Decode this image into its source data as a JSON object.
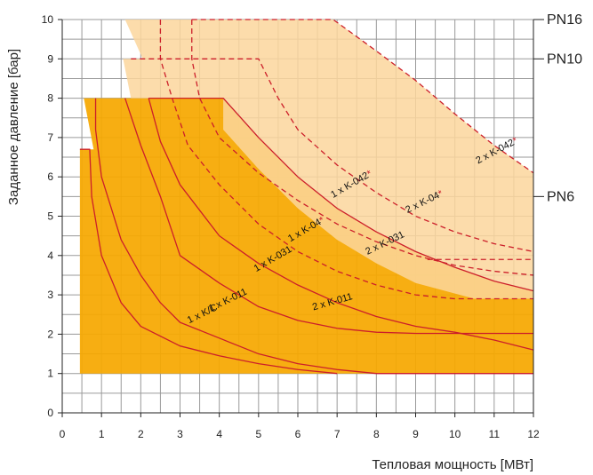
{
  "chart_data": {
    "type": "area",
    "title": "",
    "xlabel": "Тепловая мощность [МВт]",
    "ylabel": "Заданное давление [бар]",
    "xlim": [
      0,
      12
    ],
    "ylim": [
      0,
      10
    ],
    "x_ticks": [
      "0",
      "1",
      "2",
      "3",
      "4",
      "5",
      "6",
      "7",
      "8",
      "9",
      "10",
      "11",
      "12"
    ],
    "y_ticks": [
      "0",
      "1",
      "2",
      "3",
      "4",
      "5",
      "6",
      "7",
      "8",
      "9",
      "10"
    ],
    "grid": true,
    "colors": {
      "orange": "#f6a800",
      "light_orange": "#fbd69c",
      "curve": "#cc1f2a",
      "grid": "#9a9a9a"
    },
    "pressure_classes": [
      {
        "label": "PN16",
        "y": 10
      },
      {
        "label": "PN10",
        "y": 9
      },
      {
        "label": "PN6",
        "y": 5.5
      }
    ],
    "regions": [
      {
        "name": "orange",
        "points": [
          [
            0.45,
            1
          ],
          [
            0.45,
            6.7
          ],
          [
            0.8,
            6.7
          ],
          [
            0.55,
            8
          ],
          [
            4.1,
            8
          ],
          [
            5,
            7
          ],
          [
            6,
            6
          ],
          [
            7,
            5.2
          ],
          [
            8,
            4.6
          ],
          [
            9,
            4.1
          ],
          [
            10,
            3.7
          ],
          [
            11,
            3.35
          ],
          [
            12,
            3.1
          ],
          [
            12,
            1
          ]
        ]
      },
      {
        "name": "light_orange",
        "points": [
          [
            1.6,
            10
          ],
          [
            6.9,
            10
          ],
          [
            8,
            9.2
          ],
          [
            9,
            8.45
          ],
          [
            10,
            7.6
          ],
          [
            11,
            6.8
          ],
          [
            12,
            6.1
          ],
          [
            12,
            2.9
          ],
          [
            10.5,
            2.9
          ],
          [
            9,
            3.3
          ],
          [
            8,
            3.8
          ],
          [
            7,
            4.4
          ],
          [
            6,
            5.2
          ],
          [
            5,
            6.2
          ],
          [
            4.1,
            7.2
          ],
          [
            4.1,
            8
          ],
          [
            1.75,
            8
          ],
          [
            1.55,
            9
          ],
          [
            2.05,
            9
          ],
          [
            1.6,
            10
          ]
        ]
      }
    ],
    "series": [
      {
        "name": "1 x K/C",
        "style": "solid",
        "points": [
          [
            0.45,
            6.7
          ],
          [
            0.7,
            6.7
          ],
          [
            0.75,
            5.5
          ],
          [
            1,
            4
          ],
          [
            1.5,
            2.8
          ],
          [
            2,
            2.2
          ],
          [
            3,
            1.7
          ],
          [
            4,
            1.45
          ],
          [
            5,
            1.25
          ],
          [
            6,
            1.1
          ],
          [
            7,
            1
          ]
        ]
      },
      {
        "name": "1 x K-011",
        "style": "solid",
        "points": [
          [
            0.85,
            8
          ],
          [
            0.85,
            7.2
          ],
          [
            1,
            6
          ],
          [
            1.5,
            4.4
          ],
          [
            2,
            3.5
          ],
          [
            2.5,
            2.8
          ],
          [
            3,
            2.3
          ],
          [
            4,
            1.9
          ],
          [
            5,
            1.5
          ],
          [
            6,
            1.25
          ],
          [
            7,
            1.1
          ],
          [
            8,
            1
          ],
          [
            12,
            1
          ]
        ]
      },
      {
        "name": "2 x K-011",
        "style": "solid",
        "points": [
          [
            1.6,
            8
          ],
          [
            2,
            6.8
          ],
          [
            2.5,
            5.5
          ],
          [
            3,
            4
          ],
          [
            4,
            3.3
          ],
          [
            5,
            2.7
          ],
          [
            6,
            2.35
          ],
          [
            7,
            2.15
          ],
          [
            8,
            2.05
          ],
          [
            9,
            2.02
          ],
          [
            10,
            2.02
          ],
          [
            12,
            2.02
          ]
        ]
      },
      {
        "name": "1 x K-031",
        "style": "solid",
        "points": [
          [
            2.2,
            8
          ],
          [
            2.5,
            6.9
          ],
          [
            3,
            5.8
          ],
          [
            4,
            4.5
          ],
          [
            5,
            3.8
          ],
          [
            6,
            3.25
          ],
          [
            7,
            2.8
          ],
          [
            8,
            2.45
          ],
          [
            9,
            2.2
          ],
          [
            10,
            2.05
          ],
          [
            11,
            1.85
          ],
          [
            12,
            1.6
          ]
        ]
      },
      {
        "name": "2 x K-031",
        "style": "solid",
        "points": [
          [
            2.2,
            8
          ],
          [
            4.1,
            8
          ],
          [
            5,
            7
          ],
          [
            6,
            6
          ],
          [
            7,
            5.2
          ],
          [
            8,
            4.6
          ],
          [
            9,
            4.1
          ],
          [
            10,
            3.7
          ],
          [
            11,
            3.35
          ],
          [
            12,
            3.1
          ]
        ]
      },
      {
        "name": "1 x K-04*",
        "style": "dashed",
        "points": [
          [
            2.5,
            10
          ],
          [
            2.5,
            9
          ],
          [
            2.8,
            8
          ],
          [
            3.2,
            6.8
          ],
          [
            4,
            5.8
          ],
          [
            5,
            4.8
          ],
          [
            6,
            4.1
          ],
          [
            7,
            3.6
          ],
          [
            8,
            3.25
          ],
          [
            9,
            3
          ],
          [
            10,
            2.9
          ],
          [
            12,
            2.9
          ]
        ]
      },
      {
        "name": "1 x K-042*",
        "style": "dashed",
        "points": [
          [
            3.3,
            10
          ],
          [
            3.3,
            9
          ],
          [
            3.5,
            8
          ],
          [
            4,
            7
          ],
          [
            5,
            6.1
          ],
          [
            6,
            5.4
          ],
          [
            7,
            4.8
          ],
          [
            8,
            4.35
          ],
          [
            9,
            4
          ],
          [
            10,
            3.75
          ],
          [
            11,
            3.6
          ],
          [
            12,
            3.5
          ]
        ]
      },
      {
        "name": "2 x K-04*",
        "style": "dashed",
        "points": [
          [
            1.75,
            9
          ],
          [
            5,
            9
          ],
          [
            5.5,
            8
          ],
          [
            6,
            7.2
          ],
          [
            7,
            6.3
          ],
          [
            8,
            5.6
          ],
          [
            9,
            5
          ],
          [
            10,
            4.6
          ],
          [
            11,
            4.3
          ],
          [
            12,
            4.1
          ]
        ]
      },
      {
        "name": "2 x K-042*",
        "style": "dashed",
        "points": [
          [
            3.3,
            10
          ],
          [
            6.9,
            10
          ],
          [
            8,
            9.2
          ],
          [
            9,
            8.45
          ],
          [
            10,
            7.6
          ],
          [
            11,
            6.8
          ],
          [
            12,
            6.1
          ]
        ]
      },
      {
        "name": "1 x K-042*",
        "style": "dashed",
        "points": [
          [
            9.3,
            3.9
          ],
          [
            12,
            3.9
          ]
        ]
      }
    ],
    "annotations": [
      {
        "text": "1 x K/C",
        "x": 3.6,
        "y": 2.45,
        "angle": -26
      },
      {
        "text": "1 x K-011",
        "x": 4.25,
        "y": 2.8,
        "angle": -26
      },
      {
        "text": "2 x K-011",
        "x": 6.9,
        "y": 2.75,
        "angle": -16
      },
      {
        "text": "1 x K-031",
        "x": 5.4,
        "y": 3.85,
        "angle": -30
      },
      {
        "text": "2 x K-031",
        "x": 8.25,
        "y": 4.25,
        "angle": -26
      },
      {
        "text": "1 x K-04*",
        "x": 6.25,
        "y": 4.6,
        "angle": -30
      },
      {
        "text": "1 x K-042*",
        "x": 7.4,
        "y": 5.75,
        "angle": -30
      },
      {
        "text": "2 x K-04*",
        "x": 9.25,
        "y": 5.3,
        "angle": -26
      },
      {
        "text": "2 x K-042*",
        "x": 11.1,
        "y": 6.6,
        "angle": -28
      }
    ]
  }
}
